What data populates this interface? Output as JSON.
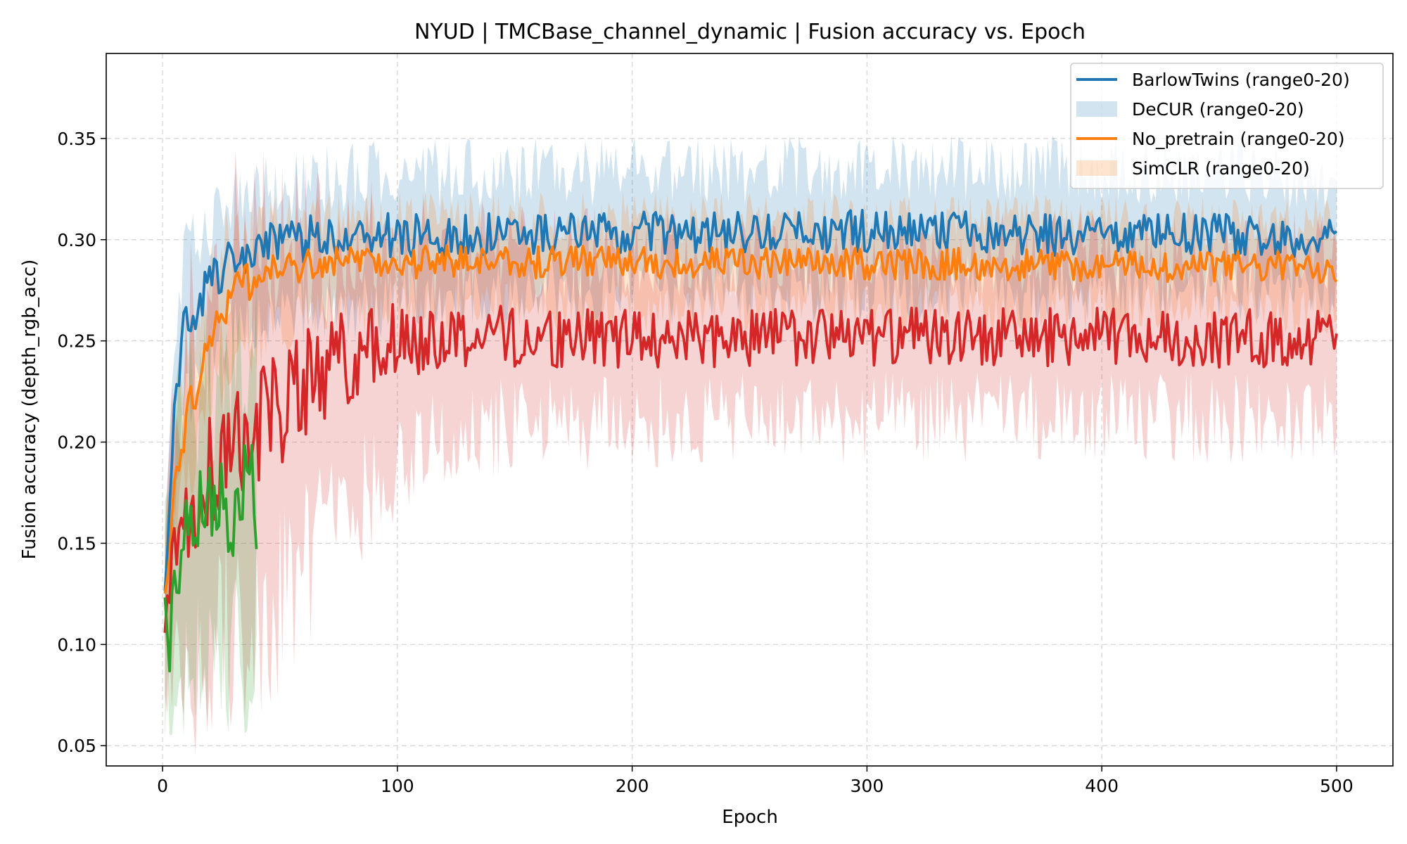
{
  "chart_data": {
    "type": "line",
    "title": "NYUD | TMCBase_channel_dynamic | Fusion accuracy vs. Epoch",
    "xlabel": "Epoch",
    "ylabel": "Fusion accuracy (depth_rgb_acc)",
    "xlim": [
      -24,
      524
    ],
    "ylim": [
      0.04,
      0.392
    ],
    "xticks": [
      0,
      100,
      200,
      300,
      400,
      500
    ],
    "yticks": [
      0.05,
      0.1,
      0.15,
      0.2,
      0.25,
      0.3,
      0.35
    ],
    "xtick_labels": [
      "0",
      "100",
      "200",
      "300",
      "400",
      "500"
    ],
    "ytick_labels": [
      "0.05",
      "0.10",
      "0.15",
      "0.20",
      "0.25",
      "0.30",
      "0.35"
    ],
    "grid": true,
    "legend_position": "top-right",
    "legend": [
      {
        "label": "BarlowTwins (range0-20)",
        "kind": "line",
        "color": "#1f77b4"
      },
      {
        "label": "DeCUR (range0-20)",
        "kind": "band",
        "color": "#1f77b4"
      },
      {
        "label": "No_pretrain (range0-20)",
        "kind": "line",
        "color": "#ff7f0e"
      },
      {
        "label": "SimCLR (range0-20)",
        "kind": "band",
        "color": "#ff7f0e"
      }
    ],
    "series": [
      {
        "name": "BarlowTwins (range0-20)",
        "color": "#1f77b4",
        "x": [
          1,
          3,
          5,
          7,
          10,
          15,
          20,
          25,
          30,
          40,
          50,
          60,
          70,
          80,
          100,
          120,
          150,
          200,
          250,
          300,
          350,
          400,
          450,
          500
        ],
        "y": [
          0.12,
          0.175,
          0.21,
          0.24,
          0.258,
          0.268,
          0.278,
          0.284,
          0.29,
          0.295,
          0.298,
          0.3,
          0.302,
          0.302,
          0.302,
          0.303,
          0.303,
          0.303,
          0.303,
          0.304,
          0.304,
          0.302,
          0.303,
          0.3
        ],
        "lower": [
          0.1,
          0.13,
          0.17,
          0.2,
          0.22,
          0.232,
          0.242,
          0.248,
          0.252,
          0.258,
          0.262,
          0.265,
          0.268,
          0.268,
          0.27,
          0.272,
          0.273,
          0.274,
          0.275,
          0.276,
          0.276,
          0.275,
          0.276,
          0.273
        ],
        "upper": [
          0.14,
          0.21,
          0.25,
          0.275,
          0.29,
          0.3,
          0.308,
          0.313,
          0.317,
          0.322,
          0.326,
          0.328,
          0.33,
          0.331,
          0.332,
          0.333,
          0.333,
          0.334,
          0.334,
          0.335,
          0.335,
          0.334,
          0.334,
          0.33
        ]
      },
      {
        "name": "No_pretrain (range0-20)",
        "color": "#ff7f0e",
        "x": [
          1,
          3,
          5,
          7,
          10,
          15,
          20,
          25,
          30,
          40,
          50,
          60,
          70,
          80,
          100,
          120,
          150,
          200,
          250,
          300,
          350,
          400,
          450,
          500
        ],
        "y": [
          0.12,
          0.15,
          0.18,
          0.195,
          0.21,
          0.23,
          0.25,
          0.265,
          0.275,
          0.282,
          0.285,
          0.288,
          0.289,
          0.289,
          0.289,
          0.289,
          0.289,
          0.289,
          0.288,
          0.288,
          0.288,
          0.287,
          0.287,
          0.286
        ],
        "lower": [
          0.095,
          0.12,
          0.15,
          0.168,
          0.18,
          0.2,
          0.218,
          0.232,
          0.24,
          0.25,
          0.258,
          0.262,
          0.264,
          0.266,
          0.266,
          0.266,
          0.266,
          0.266,
          0.266,
          0.266,
          0.266,
          0.266,
          0.266,
          0.264
        ],
        "upper": [
          0.145,
          0.18,
          0.21,
          0.222,
          0.24,
          0.262,
          0.282,
          0.295,
          0.302,
          0.306,
          0.308,
          0.31,
          0.311,
          0.311,
          0.311,
          0.311,
          0.311,
          0.311,
          0.311,
          0.31,
          0.31,
          0.31,
          0.309,
          0.308
        ]
      },
      {
        "name": "",
        "color": "#d62728",
        "x": [
          1,
          5,
          10,
          15,
          20,
          25,
          30,
          35,
          40,
          50,
          60,
          70,
          80,
          90,
          100,
          110,
          120,
          130,
          150,
          200,
          250,
          300,
          350,
          400,
          450,
          500
        ],
        "y": [
          0.118,
          0.15,
          0.172,
          0.18,
          0.185,
          0.195,
          0.2,
          0.205,
          0.21,
          0.218,
          0.228,
          0.236,
          0.242,
          0.247,
          0.25,
          0.251,
          0.252,
          0.253,
          0.252,
          0.251,
          0.252,
          0.252,
          0.252,
          0.252,
          0.251,
          0.252
        ],
        "lower": [
          0.072,
          0.08,
          0.085,
          0.09,
          0.095,
          0.1,
          0.105,
          0.108,
          0.112,
          0.125,
          0.14,
          0.155,
          0.168,
          0.18,
          0.19,
          0.196,
          0.2,
          0.204,
          0.207,
          0.21,
          0.211,
          0.212,
          0.212,
          0.212,
          0.212,
          0.211
        ],
        "upper": [
          0.165,
          0.21,
          0.25,
          0.268,
          0.28,
          0.29,
          0.295,
          0.297,
          0.298,
          0.298,
          0.298,
          0.298,
          0.298,
          0.297,
          0.296,
          0.295,
          0.295,
          0.295,
          0.294,
          0.292,
          0.292,
          0.292,
          0.292,
          0.292,
          0.291,
          0.292
        ]
      },
      {
        "name": "",
        "color": "#2ca02c",
        "x": [
          1,
          3,
          5,
          7,
          10,
          13,
          15,
          18,
          20,
          23,
          25,
          28,
          30,
          33,
          35,
          38,
          40
        ],
        "y": [
          0.112,
          0.1,
          0.125,
          0.14,
          0.15,
          0.158,
          0.16,
          0.163,
          0.165,
          0.167,
          0.168,
          0.169,
          0.17,
          0.171,
          0.172,
          0.172,
          0.17
        ],
        "lower": [
          0.065,
          0.06,
          0.07,
          0.075,
          0.08,
          0.082,
          0.085,
          0.087,
          0.088,
          0.088,
          0.089,
          0.089,
          0.09,
          0.09,
          0.09,
          0.09,
          0.09
        ],
        "upper": [
          0.15,
          0.16,
          0.19,
          0.205,
          0.215,
          0.22,
          0.225,
          0.228,
          0.23,
          0.232,
          0.234,
          0.236,
          0.238,
          0.24,
          0.242,
          0.243,
          0.243
        ]
      }
    ]
  }
}
